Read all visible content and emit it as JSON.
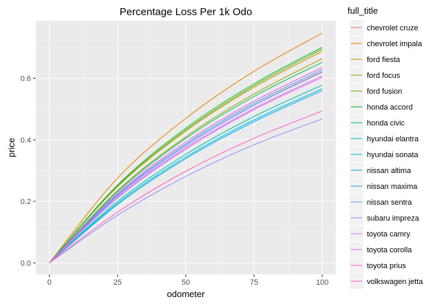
{
  "chart_data": {
    "type": "line",
    "title": "Percentage Loss Per 1k Odo",
    "xlabel": "odometer",
    "ylabel": "price",
    "xlim": [
      -5,
      105
    ],
    "ylim": [
      -0.0375,
      0.7875
    ],
    "xticks": [
      0,
      25,
      50,
      75,
      100
    ],
    "yticks": [
      0.0,
      0.2,
      0.4,
      0.6
    ],
    "xtick_labels": [
      "0",
      "25",
      "50",
      "75",
      "100"
    ],
    "ytick_labels": [
      "0.0",
      "0.2",
      "0.4",
      "0.6"
    ],
    "grid": true,
    "background": "#ebebeb",
    "legend_title": "full_title",
    "legend_position": "right",
    "series": [
      {
        "name": "chevrolet cruze",
        "color": "#F8766D",
        "x": [
          0,
          25,
          50,
          75,
          100
        ],
        "y": [
          0.0,
          0.219,
          0.382,
          0.513,
          0.622
        ]
      },
      {
        "name": "chevrolet impala",
        "color": "#E58700",
        "x": [
          0,
          25,
          50,
          75,
          100
        ],
        "y": [
          0.0,
          0.276,
          0.47,
          0.623,
          0.747
        ]
      },
      {
        "name": "ford fiesta",
        "color": "#C99800",
        "x": [
          0,
          25,
          50,
          75,
          100
        ],
        "y": [
          0.0,
          0.248,
          0.429,
          0.571,
          0.688
        ]
      },
      {
        "name": "ford focus",
        "color": "#A3A500",
        "x": [
          0,
          25,
          50,
          75,
          100
        ],
        "y": [
          0.0,
          0.235,
          0.41,
          0.549,
          0.664
        ]
      },
      {
        "name": "ford fusion",
        "color": "#6BB100",
        "x": [
          0,
          25,
          50,
          75,
          100
        ],
        "y": [
          0.0,
          0.25,
          0.432,
          0.576,
          0.695
        ]
      },
      {
        "name": "honda accord",
        "color": "#00BA38",
        "x": [
          0,
          25,
          50,
          75,
          100
        ],
        "y": [
          0.0,
          0.253,
          0.438,
          0.582,
          0.701
        ]
      },
      {
        "name": "honda civic",
        "color": "#00BF7D",
        "x": [
          0,
          25,
          50,
          75,
          100
        ],
        "y": [
          0.0,
          0.232,
          0.405,
          0.541,
          0.652
        ]
      },
      {
        "name": "hyundai elantra",
        "color": "#00C0AF",
        "x": [
          0,
          25,
          50,
          75,
          100
        ],
        "y": [
          0.0,
          0.2,
          0.353,
          0.476,
          0.578
        ]
      },
      {
        "name": "hyundai sonata",
        "color": "#00BCD8",
        "x": [
          0,
          25,
          50,
          75,
          100
        ],
        "y": [
          0.0,
          0.194,
          0.344,
          0.465,
          0.566
        ]
      },
      {
        "name": "nissan altima",
        "color": "#00B0F6",
        "x": [
          0,
          25,
          50,
          75,
          100
        ],
        "y": [
          0.0,
          0.19,
          0.339,
          0.459,
          0.56
        ]
      },
      {
        "name": "nissan maxima",
        "color": "#35A2FF",
        "x": [
          0,
          25,
          50,
          75,
          100
        ],
        "y": [
          0.0,
          0.222,
          0.387,
          0.519,
          0.628
        ]
      },
      {
        "name": "nissan sentra",
        "color": "#619CFF",
        "x": [
          0,
          25,
          50,
          75,
          100
        ],
        "y": [
          0.0,
          0.218,
          0.381,
          0.512,
          0.62
        ]
      },
      {
        "name": "subaru impreza",
        "color": "#9590FF",
        "x": [
          0,
          25,
          50,
          75,
          100
        ],
        "y": [
          0.0,
          0.155,
          0.281,
          0.384,
          0.468
        ]
      },
      {
        "name": "toyota camry",
        "color": "#C77CFF",
        "x": [
          0,
          25,
          50,
          75,
          100
        ],
        "y": [
          0.0,
          0.213,
          0.374,
          0.502,
          0.608
        ]
      },
      {
        "name": "toyota corolla",
        "color": "#E76BF3",
        "x": [
          0,
          25,
          50,
          75,
          100
        ],
        "y": [
          0.0,
          0.211,
          0.37,
          0.498,
          0.603
        ]
      },
      {
        "name": "toyota prius",
        "color": "#FA62DB",
        "x": [
          0,
          25,
          50,
          75,
          100
        ],
        "y": [
          0.0,
          0.226,
          0.393,
          0.526,
          0.635
        ]
      },
      {
        "name": "volkswagen jetta",
        "color": "#FF62BC",
        "x": [
          0,
          25,
          50,
          75,
          100
        ],
        "y": [
          0.0,
          0.165,
          0.298,
          0.405,
          0.494
        ]
      }
    ]
  }
}
